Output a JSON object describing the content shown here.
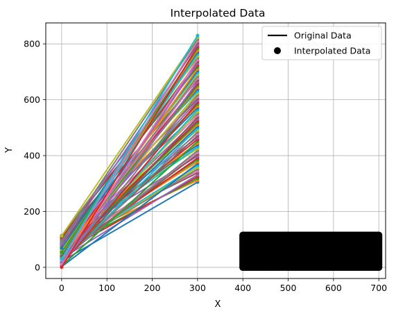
{
  "chart_data": {
    "type": "line",
    "title": "Interpolated Data",
    "xlabel": "X",
    "ylabel": "Y",
    "xlim": [
      -35,
      715
    ],
    "ylim": [
      -40,
      875
    ],
    "xticks": [
      0,
      100,
      200,
      300,
      400,
      500,
      600,
      700
    ],
    "yticks": [
      0,
      200,
      400,
      600,
      800
    ],
    "grid": true,
    "legend_placement": "top-right",
    "legend": [
      {
        "label": "Original Data",
        "kind": "line",
        "color": "#000000"
      },
      {
        "label": "Interpolated Data",
        "kind": "marker",
        "color": "#000000"
      }
    ],
    "line_bundle": {
      "x": [
        0,
        300
      ],
      "start_y_range": [
        0,
        115
      ],
      "end_y_range": [
        305,
        830
      ],
      "line_count": 80,
      "palette": [
        "#1f77b4",
        "#ff7f0e",
        "#2ca02c",
        "#d62728",
        "#9467bd",
        "#8c564b",
        "#e377c2",
        "#7f7f7f",
        "#bcbd22",
        "#17becf"
      ]
    },
    "interpolated_block": {
      "x_range": [
        400,
        700
      ],
      "y_range": [
        0,
        115
      ],
      "color": "#000000"
    }
  }
}
